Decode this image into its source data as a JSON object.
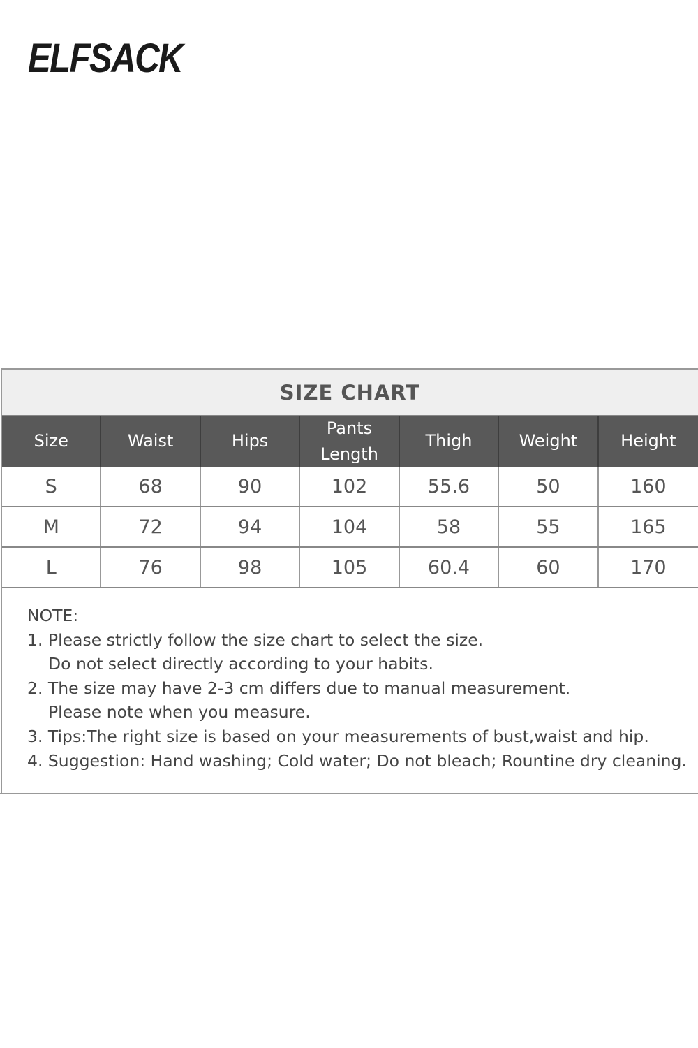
{
  "header": {
    "logo": "ELFSACK"
  },
  "size_chart": {
    "title": "SIZE CHART",
    "columns": [
      "Size",
      "Waist",
      "Hips",
      "Pants Length",
      "Thigh",
      "Weight",
      "Height"
    ],
    "rows": [
      [
        "S",
        "68",
        "90",
        "102",
        "55.6",
        "50",
        "160"
      ],
      [
        "M",
        "72",
        "94",
        "104",
        "58",
        "55",
        "165"
      ],
      [
        "L",
        "76",
        "98",
        "105",
        "60.4",
        "60",
        "170"
      ]
    ]
  },
  "notes": {
    "heading": "NOTE:",
    "lines": [
      "1. Please strictly follow the size chart to select the size.",
      "Do not select directly according to your habits.",
      "2. The size may have 2-3 cm differs due to manual measurement.",
      "Please note when you measure.",
      "3. Tips:The right size is based on your measurements of bust,waist and hip.",
      "4. Suggestion: Hand washing; Cold water; Do not bleach; Rountine dry cleaning."
    ]
  }
}
